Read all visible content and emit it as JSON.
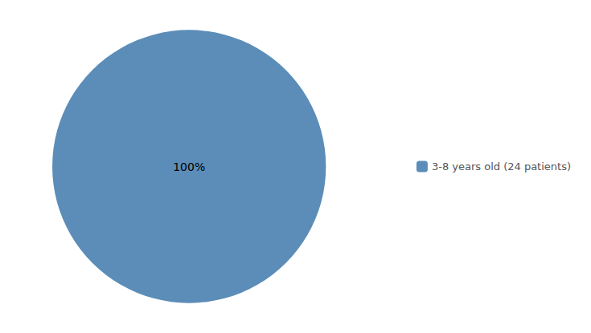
{
  "chart_data": {
    "type": "pie",
    "categories": [
      "3-8 years old (24 patients)"
    ],
    "values": [
      100
    ],
    "value_labels": [
      "100%"
    ],
    "colors": [
      "#5B8DB8"
    ],
    "data_labels": true,
    "legend": "right"
  }
}
